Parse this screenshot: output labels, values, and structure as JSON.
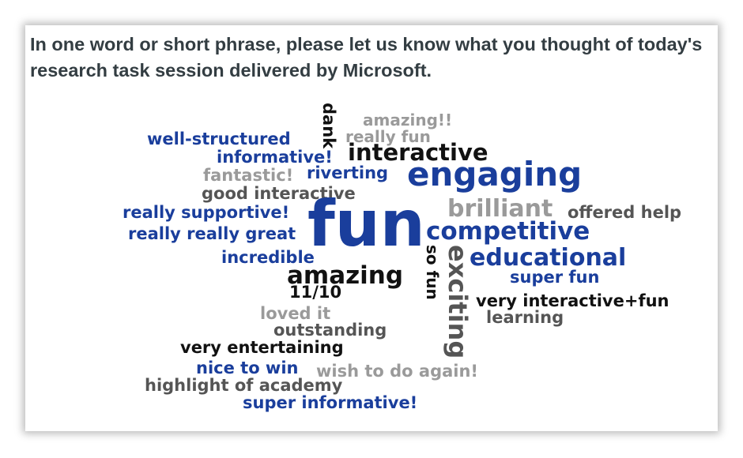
{
  "question": "In one word or short phrase, please let us know what you thought of today's research task session delivered by Microsoft.",
  "colors": {
    "blue": "#1a3e9c",
    "black": "#111111",
    "dark_gray": "#555555",
    "light_gray": "#9a9a9a"
  },
  "words": [
    {
      "id": "dank",
      "text": "dank",
      "color": "black"
    },
    {
      "id": "amazing-excl",
      "text": "amazing!!",
      "color": "light_gray"
    },
    {
      "id": "really-fun",
      "text": "really fun",
      "color": "light_gray"
    },
    {
      "id": "well-structured",
      "text": "well-structured",
      "color": "blue"
    },
    {
      "id": "interactive",
      "text": "interactive",
      "color": "black"
    },
    {
      "id": "informative-excl",
      "text": "informative!",
      "color": "blue"
    },
    {
      "id": "engaging",
      "text": "engaging",
      "color": "blue"
    },
    {
      "id": "fantastic-excl",
      "text": "fantastic!",
      "color": "light_gray"
    },
    {
      "id": "riverting",
      "text": "riverting",
      "color": "blue"
    },
    {
      "id": "good-interactive",
      "text": "good interactive",
      "color": "dark_gray"
    },
    {
      "id": "brilliant",
      "text": "brilliant",
      "color": "light_gray"
    },
    {
      "id": "really-supportive",
      "text": "really supportive!",
      "color": "blue"
    },
    {
      "id": "fun",
      "text": "fun",
      "color": "blue"
    },
    {
      "id": "offered-help",
      "text": "offered help",
      "color": "dark_gray"
    },
    {
      "id": "competitive",
      "text": "competitive",
      "color": "blue"
    },
    {
      "id": "really-really-great",
      "text": "really really great",
      "color": "blue"
    },
    {
      "id": "incredible",
      "text": "incredible",
      "color": "blue"
    },
    {
      "id": "so-fun",
      "text": "so fun",
      "color": "black"
    },
    {
      "id": "exciting",
      "text": "exciting",
      "color": "dark_gray"
    },
    {
      "id": "educational",
      "text": "educational",
      "color": "blue"
    },
    {
      "id": "amazing",
      "text": "amazing",
      "color": "black"
    },
    {
      "id": "super-fun",
      "text": "super fun",
      "color": "blue"
    },
    {
      "id": "eleven-of-ten",
      "text": "11/10",
      "color": "black"
    },
    {
      "id": "very-interactive-fun",
      "text": "very interactive+fun",
      "color": "black"
    },
    {
      "id": "loved-it",
      "text": "loved it",
      "color": "light_gray"
    },
    {
      "id": "learning",
      "text": "learning",
      "color": "dark_gray"
    },
    {
      "id": "outstanding",
      "text": "outstanding",
      "color": "dark_gray"
    },
    {
      "id": "very-entertaining",
      "text": "very entertaining",
      "color": "black"
    },
    {
      "id": "nice-to-win",
      "text": "nice to win",
      "color": "blue"
    },
    {
      "id": "wish-to-do-again",
      "text": "wish to do again!",
      "color": "light_gray"
    },
    {
      "id": "highlight-of-academy",
      "text": "highlight of academy",
      "color": "dark_gray"
    },
    {
      "id": "super-informative",
      "text": "super informative!",
      "color": "blue"
    }
  ]
}
